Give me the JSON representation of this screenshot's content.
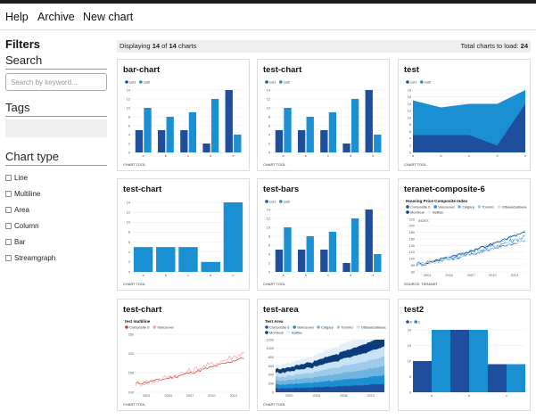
{
  "nav": {
    "help": "Help",
    "archive": "Archive",
    "new_chart": "New chart"
  },
  "sidebar": {
    "filters": "Filters",
    "search_title": "Search",
    "search_placeholder": "Search by keyword...",
    "tags_title": "Tags",
    "chart_type_title": "Chart type",
    "chart_types": [
      "Line",
      "Multiline",
      "Area",
      "Column",
      "Bar",
      "Streamgraph"
    ]
  },
  "status": {
    "displaying_prefix": "Displaying",
    "shown": "14",
    "of": "of",
    "total": "14",
    "suffix": "charts",
    "total_label": "Total charts to load:",
    "total_value": "24"
  },
  "colors": {
    "dark_blue": "#1f4e9c",
    "light_blue": "#1a8fd1",
    "red": "#c0392b",
    "pink": "#f4a4a0"
  },
  "cards": [
    {
      "title": "bar-chart",
      "tool": "CHART TOOL"
    },
    {
      "title": "test-chart",
      "tool": "CHART TOOL"
    },
    {
      "title": "test",
      "tool": "CHART TOOL"
    },
    {
      "title": "test-chart",
      "tool": "CHART TOOL"
    },
    {
      "title": "test-bars",
      "tool": "CHART TOOL"
    },
    {
      "title": "teranet-composite-6",
      "tool": "SOURCE: TERANET"
    },
    {
      "title": "test-chart",
      "tool": "CHART TOOL"
    },
    {
      "title": "test-area",
      "tool": "CHART TOOL"
    },
    {
      "title": "test2",
      "tool": ""
    }
  ],
  "chart_data": [
    {
      "type": "bar",
      "categories": [
        "a",
        "b",
        "c",
        "d",
        "e"
      ],
      "series": [
        {
          "name": "col1",
          "values": [
            5,
            5,
            5,
            2,
            14
          ]
        },
        {
          "name": "col2",
          "values": [
            10,
            8,
            9,
            12,
            4
          ]
        }
      ],
      "ylim": [
        0,
        14
      ],
      "yticks": [
        0,
        2,
        4,
        6,
        8,
        10,
        12,
        14
      ]
    },
    {
      "type": "bar",
      "categories": [
        "a",
        "b",
        "c",
        "d",
        "e"
      ],
      "series": [
        {
          "name": "col1",
          "values": [
            5,
            5,
            5,
            2,
            14
          ]
        },
        {
          "name": "col2",
          "values": [
            10,
            8,
            9,
            12,
            4
          ]
        }
      ],
      "ylim": [
        0,
        14
      ],
      "yticks": [
        0,
        2,
        4,
        6,
        8,
        10,
        12,
        14
      ]
    },
    {
      "type": "area",
      "categories": [
        "a",
        "b",
        "c",
        "d",
        "e"
      ],
      "series": [
        {
          "name": "col1",
          "values": [
            5,
            5,
            5,
            2,
            14
          ]
        },
        {
          "name": "col2",
          "values": [
            10,
            8,
            9,
            12,
            4
          ]
        }
      ],
      "ylim": [
        0,
        18
      ],
      "yticks": [
        0,
        2,
        4,
        6,
        8,
        10,
        12,
        14,
        16,
        18
      ]
    },
    {
      "type": "bar",
      "categories": [
        "a",
        "b",
        "c",
        "d",
        "e"
      ],
      "series": [
        {
          "values": [
            5,
            5,
            5,
            2,
            14
          ]
        }
      ],
      "ylim": [
        0,
        14
      ],
      "yticks": [
        0,
        2,
        4,
        6,
        8,
        10,
        12,
        14
      ]
    },
    {
      "type": "bar",
      "categories": [
        "a",
        "b",
        "c",
        "d",
        "e"
      ],
      "series": [
        {
          "name": "col1",
          "values": [
            5,
            5,
            5,
            2,
            14
          ]
        },
        {
          "name": "col2",
          "values": [
            10,
            8,
            9,
            12,
            4
          ]
        }
      ],
      "ylim": [
        0,
        14
      ],
      "yticks": [
        0,
        2,
        4,
        6,
        8,
        10,
        12,
        14
      ]
    },
    {
      "type": "line",
      "subtitle": "Housing Price Composite Index",
      "ylabel": "INDEX",
      "series_names": [
        "Composite 6",
        "Vancouver",
        "Calgary",
        "Toronto",
        "OttawaGatineau",
        "Montreal",
        "Halifax"
      ],
      "xticks": [
        "2001",
        "2004",
        "2007",
        "2010",
        "2013"
      ],
      "yticks": [
        60,
        80,
        100,
        120,
        140,
        160,
        180,
        200,
        220
      ]
    },
    {
      "type": "line",
      "subtitle": "test multiline",
      "series_names": [
        "Composite 6",
        "Vancouver"
      ],
      "xticks": [
        "2001",
        "2004",
        "2007",
        "2010",
        "2013"
      ],
      "yticks": [
        100,
        150,
        200,
        250
      ]
    },
    {
      "type": "area",
      "subtitle": "Test Area",
      "series_names": [
        "Composite 6",
        "Vancouver",
        "Calgary",
        "Toronto",
        "OttawaGatineau",
        "Montreal",
        "Halifax"
      ],
      "xticks": [
        "2000",
        "2004",
        "2008",
        "2012"
      ],
      "yticks": [
        0,
        200,
        400,
        600,
        800,
        1000,
        1200
      ]
    },
    {
      "type": "bar",
      "categories": [
        "a",
        "b",
        "c"
      ],
      "series": [
        {
          "name": "b",
          "values": [
            10,
            20,
            9
          ]
        },
        {
          "name": "c",
          "values": [
            20,
            20,
            9
          ]
        }
      ],
      "ylim": [
        0,
        20
      ],
      "yticks": [
        0,
        5,
        10,
        15,
        20
      ]
    }
  ]
}
